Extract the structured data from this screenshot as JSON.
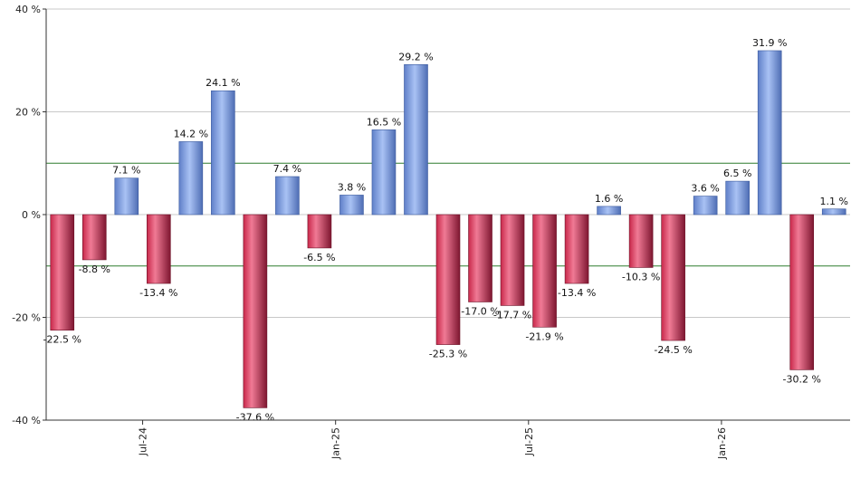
{
  "chart_data": {
    "type": "bar",
    "title": "",
    "xlabel": "",
    "ylabel": "",
    "ylim": [
      -40,
      40
    ],
    "y_ticks": [
      -40,
      -20,
      0,
      20,
      40
    ],
    "y_tick_labels": [
      "-40 %",
      "-20 %",
      "0 %",
      "20 %",
      "40 %"
    ],
    "reference_lines": [
      10,
      -10
    ],
    "reference_line_color": "#2e7d2e",
    "x_tick_labels": [
      {
        "label": "Jul-24",
        "after_bar": 2
      },
      {
        "label": "Jan-25",
        "after_bar": 8
      },
      {
        "label": "Jul-25",
        "after_bar": 14
      },
      {
        "label": "Jan-26",
        "after_bar": 20
      }
    ],
    "values": [
      -22.5,
      -8.8,
      7.1,
      -13.4,
      14.2,
      24.1,
      -37.6,
      7.4,
      -6.5,
      3.8,
      16.5,
      29.2,
      -25.3,
      -17.0,
      -17.7,
      -21.9,
      -13.4,
      1.6,
      -10.3,
      -24.5,
      3.6,
      6.5,
      31.9,
      -30.2,
      1.1
    ],
    "value_labels": [
      "-22.5 %",
      "-8.8 %",
      "7.1 %",
      "-13.4 %",
      "14.2 %",
      "24.1 %",
      "-37.6 %",
      "7.4 %",
      "-6.5 %",
      "3.8 %",
      "16.5 %",
      "29.2 %",
      "-25.3 %",
      "-17.0 %",
      "-17.7 %",
      "-21.9 %",
      "-13.4 %",
      "1.6 %",
      "-10.3 %",
      "-24.5 %",
      "3.6 %",
      "6.5 %",
      "31.9 %",
      "-30.2 %",
      "1.1 %"
    ],
    "positive_color": "#7f9fe6",
    "negative_color": "#c8284a",
    "grid": true
  }
}
